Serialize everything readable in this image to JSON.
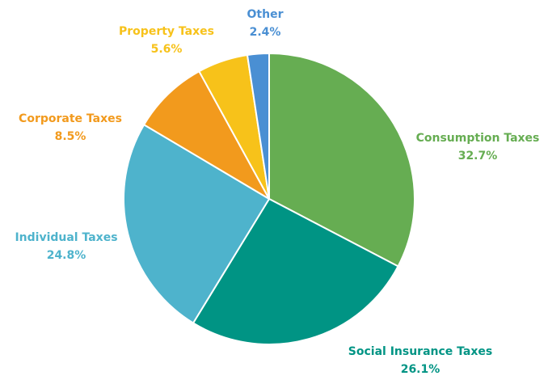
{
  "chart_data": {
    "type": "pie",
    "title": "",
    "start_angle_deg": 0,
    "direction": "clockwise",
    "slices": [
      {
        "label": "Consumption Taxes",
        "value": 32.7,
        "display": "32.7%",
        "color": "#66ad52"
      },
      {
        "label": "Social Insurance Taxes",
        "value": 26.1,
        "display": "26.1%",
        "color": "#009484"
      },
      {
        "label": "Individual Taxes",
        "value": 24.8,
        "display": "24.8%",
        "color": "#4eb3cc"
      },
      {
        "label": "Corporate Taxes",
        "value": 8.5,
        "display": "8.5%",
        "color": "#f29a1d"
      },
      {
        "label": "Property Taxes",
        "value": 5.6,
        "display": "5.6%",
        "color": "#f7c21a"
      },
      {
        "label": "Other",
        "value": 2.4,
        "display": "2.4%",
        "color": "#4a8fd3"
      }
    ]
  }
}
